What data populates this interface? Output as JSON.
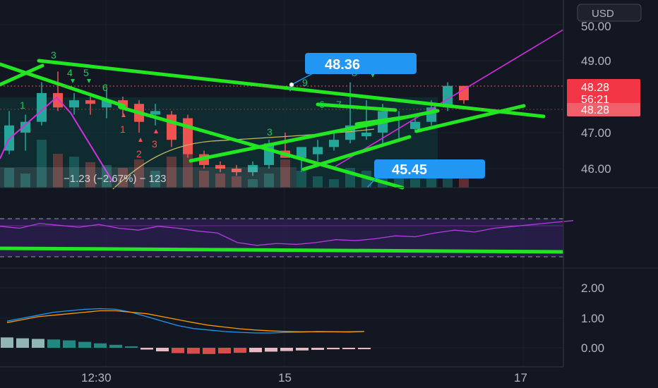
{
  "currency": "USD",
  "price_axis": {
    "labels": [
      "50.00",
      "49.00",
      "47.00",
      "46.00"
    ],
    "last_price": "48.28",
    "countdown": "56:21",
    "prev_close": "48.28"
  },
  "time_axis": {
    "labels": [
      "12:30",
      "15",
      "17"
    ]
  },
  "callouts": {
    "high": "48.36",
    "low": "45.45"
  },
  "measure_label": "−1.23 (−2.67%) − 123",
  "macd_axis": {
    "labels": [
      "2.00",
      "1.00",
      "0.00"
    ]
  },
  "colors": {
    "background": "#131722",
    "up": "#26a69a",
    "down": "#ef5350",
    "trendline": "#22e622",
    "magenta": "#d62ee0",
    "callout": "#2196f3",
    "rsi": "#9c27b0",
    "macd": "#2196f3",
    "signal": "#ff9800"
  },
  "chart_data": [
    {
      "type": "candlestick",
      "ylim": [
        45.6,
        50.4
      ],
      "candles": [
        {
          "o": 46.3,
          "h": 47.7,
          "l": 46.0,
          "c": 46.5
        },
        {
          "o": 46.5,
          "h": 47.6,
          "l": 46.4,
          "c": 47.2
        },
        {
          "o": 47.0,
          "h": 47.5,
          "l": 46.5,
          "c": 47.3
        },
        {
          "o": 47.3,
          "h": 48.4,
          "l": 47.2,
          "c": 48.1
        },
        {
          "o": 48.1,
          "h": 48.7,
          "l": 47.6,
          "c": 47.7
        },
        {
          "o": 47.7,
          "h": 48.1,
          "l": 47.5,
          "c": 47.9
        },
        {
          "o": 47.9,
          "h": 48.0,
          "l": 47.5,
          "c": 47.8
        },
        {
          "o": 47.7,
          "h": 48.2,
          "l": 47.4,
          "c": 47.9
        },
        {
          "o": 47.9,
          "h": 48.0,
          "l": 47.5,
          "c": 47.7
        },
        {
          "o": 47.8,
          "h": 47.9,
          "l": 47.0,
          "c": 47.3
        },
        {
          "o": 47.5,
          "h": 47.8,
          "l": 47.2,
          "c": 47.6
        },
        {
          "o": 47.5,
          "h": 47.6,
          "l": 46.6,
          "c": 46.8
        },
        {
          "o": 47.4,
          "h": 47.5,
          "l": 46.3,
          "c": 46.4
        },
        {
          "o": 46.4,
          "h": 46.5,
          "l": 46.0,
          "c": 46.1
        },
        {
          "o": 46.1,
          "h": 46.2,
          "l": 45.9,
          "c": 46.0
        },
        {
          "o": 46.0,
          "h": 46.1,
          "l": 45.8,
          "c": 45.9
        },
        {
          "o": 45.9,
          "h": 46.2,
          "l": 45.8,
          "c": 46.1
        },
        {
          "o": 46.1,
          "h": 46.8,
          "l": 46.0,
          "c": 46.7
        },
        {
          "o": 46.5,
          "h": 47.0,
          "l": 46.3,
          "c": 46.3
        },
        {
          "o": 46.3,
          "h": 46.6,
          "l": 45.9,
          "c": 46.6
        },
        {
          "o": 46.4,
          "h": 46.8,
          "l": 46.2,
          "c": 46.6
        },
        {
          "o": 46.6,
          "h": 47.0,
          "l": 46.5,
          "c": 46.8
        },
        {
          "o": 46.8,
          "h": 48.4,
          "l": 46.7,
          "c": 47.2
        },
        {
          "o": 46.9,
          "h": 47.9,
          "l": 46.8,
          "c": 47.0
        },
        {
          "o": 47.0,
          "h": 47.8,
          "l": 46.7,
          "c": 47.6
        },
        {
          "o": 47.4,
          "h": 47.6,
          "l": 46.8,
          "c": 47.4
        },
        {
          "o": 47.1,
          "h": 47.5,
          "l": 47.0,
          "c": 47.3
        },
        {
          "o": 47.3,
          "h": 47.9,
          "l": 47.2,
          "c": 47.7
        },
        {
          "o": 47.7,
          "h": 48.4,
          "l": 47.6,
          "c": 48.3
        },
        {
          "o": 48.3,
          "h": 48.3,
          "l": 47.8,
          "c": 47.9
        }
      ],
      "volume": [
        0.45,
        0.35,
        0.25,
        0.85,
        0.6,
        0.55,
        0.45,
        0.4,
        0.35,
        0.5,
        0.3,
        0.55,
        0.75,
        0.3,
        0.25,
        0.2,
        0.15,
        0.25,
        0.5,
        0.3,
        0.2,
        0.15,
        0.35,
        0.3,
        0.2,
        0.2,
        0.15,
        0.25,
        0.3,
        0.25
      ]
    },
    {
      "type": "line",
      "name": "RSI",
      "values": [
        62,
        60,
        65,
        63,
        61,
        64,
        60,
        58,
        62,
        60,
        57,
        55,
        45,
        42,
        44,
        43,
        45,
        48,
        47,
        49,
        52,
        51,
        55,
        58,
        56,
        60,
        62,
        64,
        66,
        68
      ]
    },
    {
      "type": "bar",
      "name": "MACD",
      "ylim": [
        -0.4,
        2.5
      ],
      "macd": [
        0.9,
        1.0,
        1.1,
        1.2,
        1.25,
        1.3,
        1.32,
        1.3,
        1.2,
        1.05,
        0.9,
        0.75,
        0.65,
        0.6,
        0.55,
        0.52,
        0.5,
        0.5,
        0.52,
        0.53,
        0.55,
        0.54,
        0.53,
        0.55
      ],
      "signal": [
        0.85,
        0.95,
        1.05,
        1.1,
        1.15,
        1.2,
        1.25,
        1.25,
        1.2,
        1.15,
        1.05,
        0.95,
        0.85,
        0.76,
        0.7,
        0.64,
        0.6,
        0.57,
        0.55,
        0.54,
        0.54,
        0.54,
        0.54,
        0.55
      ],
      "histogram": [
        0.35,
        0.32,
        0.3,
        0.28,
        0.25,
        0.2,
        0.15,
        0.1,
        0.05,
        -0.06,
        -0.12,
        -0.18,
        -0.2,
        -0.21,
        -0.19,
        -0.17,
        -0.15,
        -0.13,
        -0.11,
        -0.09,
        -0.07,
        -0.05,
        -0.03,
        -0.01
      ]
    }
  ]
}
